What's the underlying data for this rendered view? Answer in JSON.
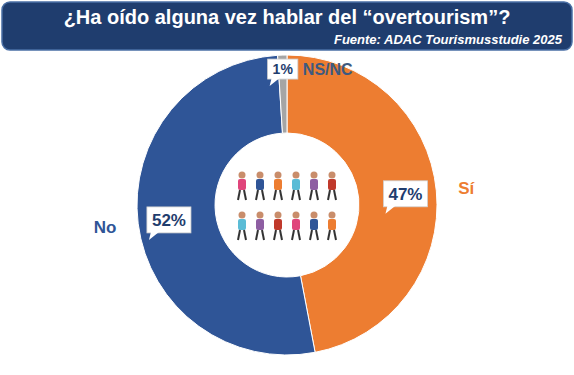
{
  "chart_data": {
    "type": "pie",
    "title": "¿Ha oído alguna vez hablar del “overtourism”?",
    "subtitle": "Fuente: ADAC Tourismusstudie 2025",
    "categories": [
      "Sí",
      "No",
      "NS/NC"
    ],
    "values": [
      47,
      52,
      1
    ],
    "value_labels": [
      "47%",
      "52%",
      "1%"
    ],
    "colors": [
      "#ed7d31",
      "#2f5597",
      "#a5a5a5"
    ],
    "data_labels": true
  }
}
